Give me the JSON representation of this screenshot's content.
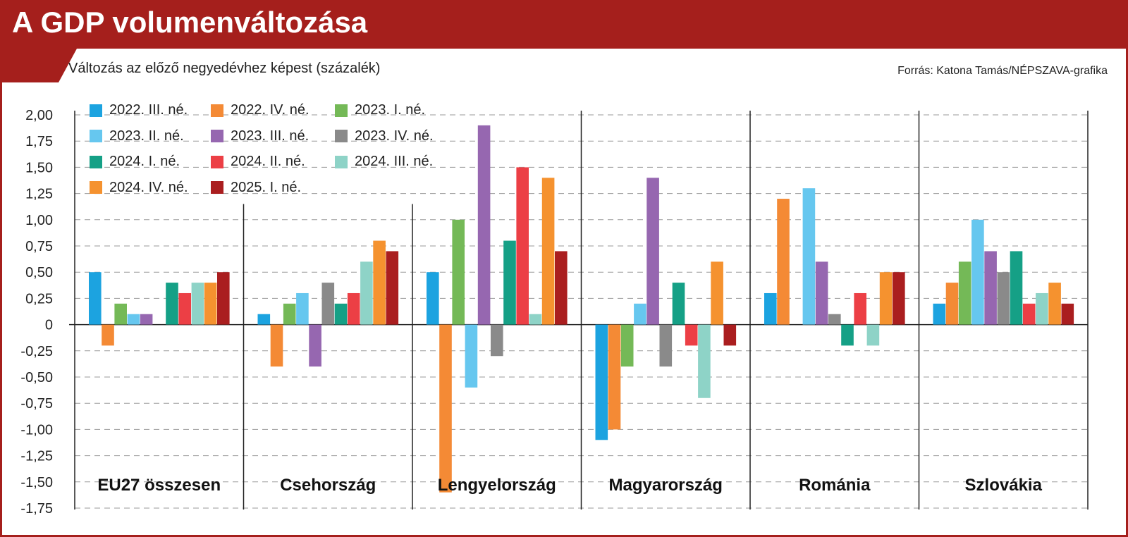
{
  "header": {
    "title": "A GDP volumenváltozása",
    "subtitle": "Változás az előző negyedévhez képest (százalék)",
    "source": "Forrás: Katona Tamás/NÉPSZAVA-grafika"
  },
  "colors": {
    "brand": "#a51f1c",
    "series": [
      "#1ca3e0",
      "#f48a35",
      "#74b957",
      "#66c7ef",
      "#9667b0",
      "#8a8a8a",
      "#15a086",
      "#ec3f45",
      "#8ed3c7",
      "#f5922f",
      "#aa1e1f"
    ]
  },
  "chart_data": {
    "type": "bar",
    "title": "A GDP volumenváltozása",
    "subtitle": "Változás az előző negyedévhez képest (százalék)",
    "ylabel": "százalék",
    "ylim": [
      -1.75,
      2.0
    ],
    "yticks": [
      "2,00",
      "1,75",
      "1,50",
      "1,25",
      "1,00",
      "0,75",
      "0,50",
      "0,25",
      "0",
      "-0,25",
      "-0,50",
      "-0,75",
      "-1,00",
      "-1,25",
      "-1,50",
      "-1,75"
    ],
    "categories": [
      "EU27 összesen",
      "Csehország",
      "Lengyelország",
      "Magyarország",
      "Románia",
      "Szlovákia"
    ],
    "series": [
      {
        "name": "2022. III. né.",
        "values": [
          0.5,
          0.1,
          0.5,
          -1.1,
          0.3,
          0.2
        ]
      },
      {
        "name": "2022. IV. né.",
        "values": [
          -0.2,
          -0.4,
          -1.6,
          -1.0,
          1.2,
          0.4
        ]
      },
      {
        "name": "2023. I. né.",
        "values": [
          0.2,
          0.2,
          1.0,
          -0.4,
          0.0,
          0.6
        ]
      },
      {
        "name": "2023. II. né.",
        "values": [
          0.1,
          0.3,
          -0.6,
          0.2,
          1.3,
          1.0
        ]
      },
      {
        "name": "2023. III. né.",
        "values": [
          0.1,
          -0.4,
          1.9,
          1.4,
          0.6,
          0.7
        ]
      },
      {
        "name": "2023. IV. né.",
        "values": [
          0.0,
          0.4,
          -0.3,
          -0.4,
          0.1,
          0.5
        ]
      },
      {
        "name": "2024. I. né.",
        "values": [
          0.4,
          0.2,
          0.8,
          0.4,
          -0.2,
          0.7
        ]
      },
      {
        "name": "2024. II. né.",
        "values": [
          0.3,
          0.3,
          1.5,
          -0.2,
          0.3,
          0.2
        ]
      },
      {
        "name": "2024. III. né.",
        "values": [
          0.4,
          0.6,
          0.1,
          -0.7,
          -0.2,
          0.3
        ]
      },
      {
        "name": "2024. IV. né.",
        "values": [
          0.4,
          0.8,
          1.4,
          0.6,
          0.5,
          0.4
        ]
      },
      {
        "name": "2025. I. né.",
        "values": [
          0.5,
          0.7,
          0.7,
          -0.2,
          0.5,
          0.2
        ]
      }
    ],
    "legend_position": "top-left",
    "grid": true
  }
}
